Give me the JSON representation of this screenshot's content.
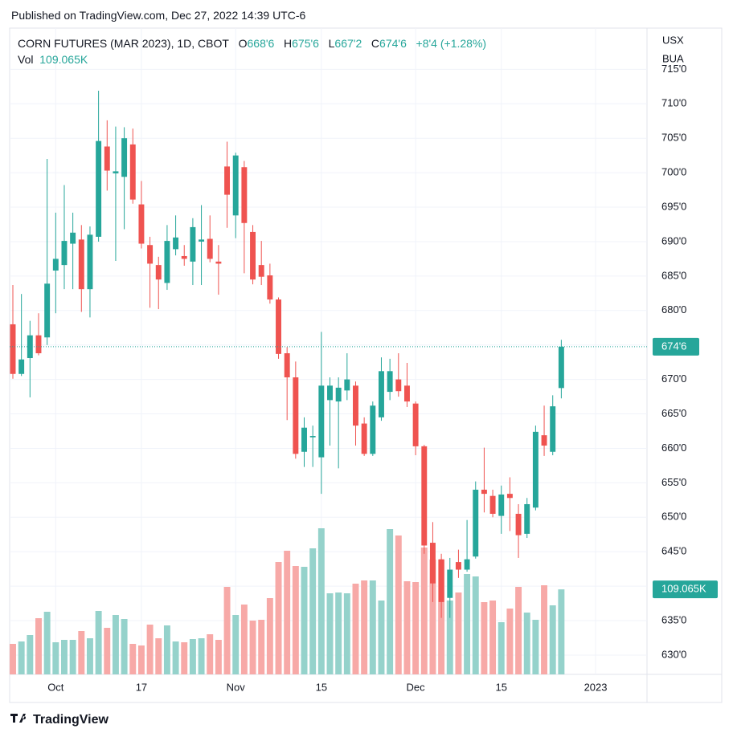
{
  "header": {
    "published": "Published on TradingView.com, Dec 27, 2022 14:39 UTC-6"
  },
  "legend": {
    "symbol": "CORN FUTURES (MAR 2023), 1D, CBOT",
    "o": "O",
    "o_value": "668'6",
    "h": "H",
    "h_value": "675'6",
    "l": "L",
    "l_value": "667'2",
    "c": "C",
    "c_value": "674'6",
    "change": "+8'4 (+1.28%)",
    "vol": "Vol",
    "vol_value": "109.065K"
  },
  "price_scale_units": [
    "USX",
    "BUA"
  ],
  "footer": {
    "brand": "TradingView"
  },
  "chart_data": {
    "type": "candlestick",
    "title": "CORN FUTURES (MAR 2023), 1D, CBOT",
    "up_color": "#26a69a",
    "down_color": "#ef5350",
    "volume_up_color": "#95d2cb",
    "volume_down_color": "#f7a9a7",
    "grid": true,
    "xlim": [
      -0.375,
      74
    ],
    "xticks": [
      {
        "value": 5,
        "label": "Oct"
      },
      {
        "value": 15,
        "label": "17"
      },
      {
        "value": 26,
        "label": "Nov"
      },
      {
        "value": 36,
        "label": "15"
      },
      {
        "value": 47,
        "label": "Dec"
      },
      {
        "value": 57,
        "label": "15"
      },
      {
        "value": 68,
        "label": "2023"
      }
    ],
    "ylim": [
      627.2,
      720.4
    ],
    "yticks": [
      {
        "value": 630,
        "label": "630'0"
      },
      {
        "value": 635,
        "label": "635'0"
      },
      {
        "value": 640,
        "label": "640'0"
      },
      {
        "value": 645,
        "label": "645'0"
      },
      {
        "value": 650,
        "label": "650'0"
      },
      {
        "value": 655,
        "label": "655'0"
      },
      {
        "value": 660,
        "label": "660'0"
      },
      {
        "value": 665,
        "label": "665'0"
      },
      {
        "value": 670,
        "label": "670'0"
      },
      {
        "value": 675,
        "label": "675'0"
      },
      {
        "value": 680,
        "label": "680'0"
      },
      {
        "value": 685,
        "label": "685'0"
      },
      {
        "value": 690,
        "label": "690'0"
      },
      {
        "value": 695,
        "label": "695'0"
      },
      {
        "value": 700,
        "label": "700'0"
      },
      {
        "value": 705,
        "label": "705'0"
      },
      {
        "value": 710,
        "label": "710'0"
      },
      {
        "value": 715,
        "label": "715'0"
      }
    ],
    "y2lim": [
      0,
      824000
    ],
    "open": [
      678.0,
      670.8,
      673.1,
      676.4,
      676.1,
      685.8,
      686.6,
      689.7,
      690.3,
      683.1,
      690.7,
      703.8,
      699.9,
      699.4,
      704.1,
      695.4,
      689.5,
      686.6,
      684.0,
      688.9,
      687.9,
      687.1,
      690.0,
      690.4,
      687.1,
      700.9,
      693.8,
      700.8,
      691.4,
      686.6,
      685.1,
      681.6,
      673.8,
      670.3,
      659.5,
      661.6,
      658.7,
      667.0,
      666.8,
      668.4,
      669.1,
      663.6,
      659.2,
      664.5,
      668.2,
      670.0,
      669.1,
      666.5,
      660.3,
      646.3,
      643.9,
      638.3,
      643.5,
      642.4,
      644.3,
      654.0,
      653.1,
      650.2,
      653.4,
      650.5,
      647.6,
      651.4,
      661.9,
      659.5,
      668.75
    ],
    "high": [
      683.7,
      682.4,
      678.5,
      679.6,
      702.0,
      694.2,
      698.2,
      694.2,
      692.4,
      692.2,
      711.9,
      707.6,
      706.7,
      706.6,
      706.4,
      698.8,
      690.7,
      687.8,
      692.4,
      693.8,
      689.5,
      693.4,
      695.3,
      693.8,
      689.5,
      704.5,
      702.9,
      701.7,
      692.4,
      690.1,
      686.8,
      681.9,
      674.7,
      672.6,
      664.5,
      663.3,
      676.9,
      670.3,
      670.3,
      673.8,
      669.7,
      664.5,
      666.8,
      673.2,
      673.0,
      673.8,
      672.4,
      666.8,
      660.5,
      649.3,
      644.7,
      644.1,
      645.3,
      649.6,
      655.2,
      660.1,
      654.0,
      654.6,
      655.8,
      651.9,
      652.8,
      663.3,
      666.2,
      667.7,
      675.75
    ],
    "low": [
      670.1,
      670.5,
      667.4,
      673.5,
      675.0,
      679.6,
      683.1,
      683.1,
      679.8,
      679.0,
      690.0,
      697.4,
      687.2,
      691.8,
      695.5,
      689.0,
      680.4,
      680.2,
      683.0,
      688.0,
      686.5,
      683.7,
      683.7,
      687.0,
      682.3,
      692.0,
      690.5,
      685.4,
      683.8,
      683.7,
      681.0,
      673.0,
      664.1,
      658.5,
      657.3,
      657.3,
      653.4,
      660.4,
      657.1,
      667.0,
      660.4,
      658.9,
      658.9,
      664.0,
      667.0,
      667.5,
      666.0,
      659.0,
      644.7,
      637.7,
      635.4,
      635.4,
      641.2,
      642.1,
      644.0,
      650.7,
      650.0,
      647.6,
      648.0,
      644.1,
      647.0,
      651.0,
      658.9,
      659.0,
      667.25
    ],
    "close": [
      670.8,
      672.9,
      676.4,
      673.8,
      683.9,
      687.5,
      690.1,
      691.3,
      683.1,
      691.0,
      704.6,
      700.3,
      700.2,
      705.0,
      696.1,
      689.7,
      686.8,
      684.5,
      690.1,
      690.6,
      687.5,
      692.1,
      690.3,
      687.5,
      686.8,
      696.8,
      702.5,
      692.7,
      684.5,
      684.9,
      681.6,
      673.7,
      670.3,
      659.2,
      663.0,
      661.8,
      669.1,
      669.1,
      668.8,
      670.0,
      663.3,
      659.2,
      666.2,
      671.2,
      671.2,
      668.3,
      666.8,
      660.3,
      645.9,
      640.4,
      637.7,
      642.4,
      642.4,
      643.9,
      654.0,
      653.4,
      650.5,
      653.3,
      652.8,
      647.4,
      651.9,
      662.4,
      660.4,
      666.1,
      674.75
    ],
    "close_label": "674'6",
    "volume": [
      39140,
      42230,
      50470,
      72100,
      80340,
      41200,
      44290,
      44290,
      55620,
      46350,
      81370,
      59740,
      76220,
      71070,
      39140,
      37080,
      63860,
      46350,
      62830,
      42230,
      41200,
      45320,
      46350,
      51500,
      44290,
      112270,
      76220,
      89610,
      69010,
      70040,
      97850,
      144200,
      158620,
      139050,
      138020,
      161710,
      187460,
      104030,
      105060,
      104030,
      116390,
      120510,
      120510,
      94760,
      186430,
      178190,
      119480,
      118450,
      162740,
      147290,
      147290,
      94760,
      105060,
      128750,
      125660,
      92700,
      94760,
      66950,
      84460,
      112270,
      79310,
      70040,
      114330,
      88580,
      109065
    ],
    "volume_label": "109.065K"
  }
}
